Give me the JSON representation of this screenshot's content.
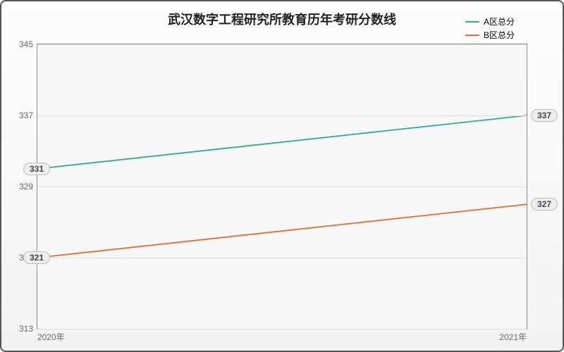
{
  "chart": {
    "type": "line",
    "title": "武汉数字工程研究所教育历年考研分数线",
    "title_fontsize": 18,
    "background_gradient": [
      "#fdfdfd",
      "#f2f2f2"
    ],
    "plot_background": "#f7f7f7",
    "border_color": "#555",
    "grid_color": "#dddddd",
    "axis_color": "#888888",
    "label_color": "#666666",
    "label_fontsize": 12,
    "x": {
      "categories": [
        "2020年",
        "2021年"
      ]
    },
    "y": {
      "min": 313,
      "max": 345,
      "ticks": [
        313,
        321,
        329,
        337,
        345
      ]
    },
    "series": [
      {
        "name": "A区总分",
        "color": "#2fae8c",
        "line_width": 1.8,
        "data": [
          331,
          337
        ]
      },
      {
        "name": "B区总分",
        "color": "#e06c3a",
        "line_width": 1.8,
        "data": [
          321,
          327
        ]
      }
    ],
    "point_label_style": {
      "background": "#eeeeee",
      "border": "#bbbbbb",
      "text": "#444444"
    }
  }
}
